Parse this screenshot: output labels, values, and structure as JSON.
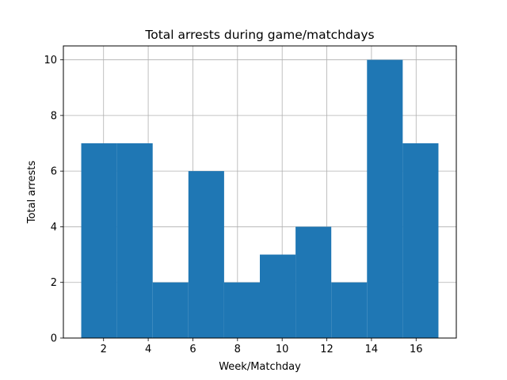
{
  "chart_data": {
    "type": "bar",
    "title": "Total arrests during game/matchdays",
    "xlabel": "Week/Matchday",
    "ylabel": "Total arrests",
    "bin_edges": [
      1,
      2.6,
      4.2,
      5.8,
      7.4,
      9.0,
      10.6,
      12.2,
      13.8,
      15.4,
      17.0
    ],
    "values": [
      7,
      7,
      2,
      6,
      2,
      3,
      4,
      2,
      10,
      7
    ],
    "xlim": [
      0.2,
      17.8
    ],
    "ylim": [
      0,
      10.5
    ],
    "xticks": [
      2,
      4,
      6,
      8,
      10,
      12,
      14,
      16
    ],
    "yticks": [
      0,
      2,
      4,
      6,
      8,
      10
    ],
    "grid": true,
    "bar_color": "#1f77b4"
  }
}
